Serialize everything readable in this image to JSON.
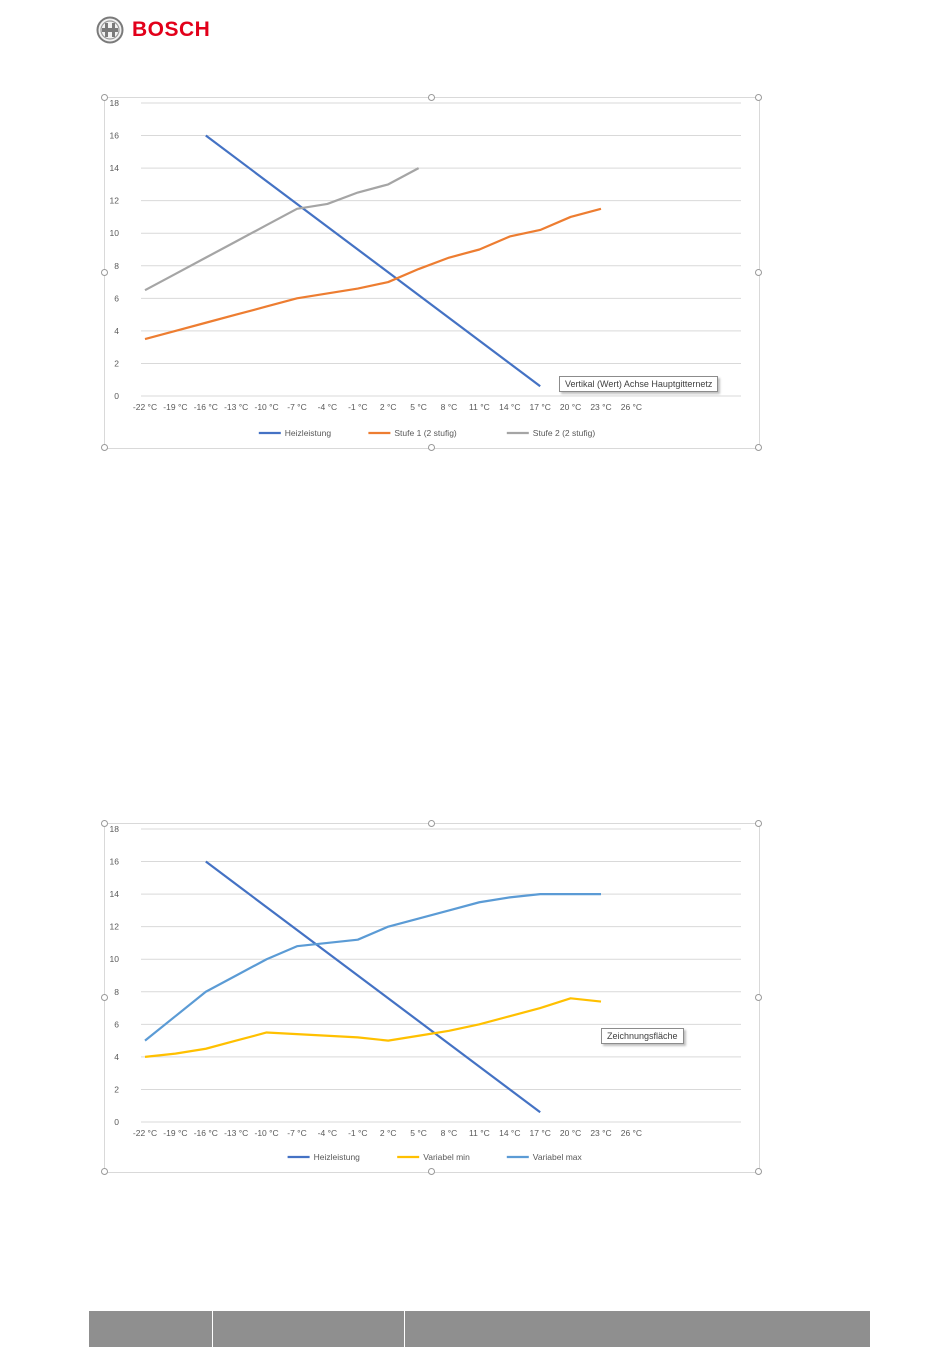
{
  "header": {
    "brand": "BOSCH",
    "brand_color": "#e2001a",
    "logo_icon": "bosch-armature-icon"
  },
  "chart_data": [
    {
      "type": "line",
      "categories": [
        "-22 °C",
        "-19 °C",
        "-16 °C",
        "-13 °C",
        "-10 °C",
        "-7 °C",
        "-4 °C",
        "-1 °C",
        "2 °C",
        "5 °C",
        "8 °C",
        "11 °C",
        "14 °C",
        "17 °C",
        "20 °C",
        "23 °C",
        "26 °C"
      ],
      "ylim": [
        0,
        18
      ],
      "yticks": [
        "0",
        "2",
        "4",
        "6",
        "8",
        "10",
        "12",
        "14",
        "16",
        "18"
      ],
      "grid": true,
      "legend": "bottom",
      "series": [
        {
          "name": "Heizleistung",
          "color": "#4472c4",
          "values": [
            null,
            null,
            16,
            null,
            null,
            null,
            null,
            null,
            null,
            null,
            null,
            null,
            null,
            0.6,
            null,
            null,
            null
          ]
        },
        {
          "name": "Stufe 1 (2 stufig)",
          "color": "#ed7d31",
          "values": [
            3.5,
            4.0,
            4.5,
            5.0,
            5.5,
            6.0,
            6.3,
            6.6,
            7.0,
            7.8,
            8.5,
            9.0,
            9.8,
            10.2,
            11.0,
            11.5,
            null
          ]
        },
        {
          "name": "Stufe 2 (2 stufig)",
          "color": "#a5a5a5",
          "values": [
            6.5,
            7.5,
            8.5,
            9.5,
            10.5,
            11.5,
            11.8,
            12.5,
            13.0,
            14.0,
            null,
            null,
            null,
            null,
            null,
            null,
            null
          ]
        }
      ],
      "tooltip": "Vertikal (Wert) Achse Hauptgitternetz"
    },
    {
      "type": "line",
      "categories": [
        "-22 °C",
        "-19 °C",
        "-16 °C",
        "-13 °C",
        "-10 °C",
        "-7 °C",
        "-4 °C",
        "-1 °C",
        "2 °C",
        "5 °C",
        "8 °C",
        "11 °C",
        "14 °C",
        "17 °C",
        "20 °C",
        "23 °C",
        "26 °C"
      ],
      "ylim": [
        0,
        18
      ],
      "yticks": [
        "0",
        "2",
        "4",
        "6",
        "8",
        "10",
        "12",
        "14",
        "16",
        "18"
      ],
      "grid": true,
      "legend": "bottom",
      "series": [
        {
          "name": "Heizleistung",
          "color": "#4472c4",
          "values": [
            null,
            null,
            16,
            null,
            null,
            null,
            null,
            null,
            null,
            null,
            null,
            null,
            null,
            0.6,
            null,
            null,
            null
          ]
        },
        {
          "name": "Variabel min",
          "color": "#ffc000",
          "values": [
            4.0,
            4.2,
            4.5,
            5.0,
            5.5,
            5.4,
            5.3,
            5.2,
            5.0,
            5.3,
            5.6,
            6.0,
            6.5,
            7.0,
            7.6,
            7.4,
            null
          ]
        },
        {
          "name": "Variabel max",
          "color": "#5b9bd5",
          "values": [
            5.0,
            6.5,
            8.0,
            9.0,
            10.0,
            10.8,
            11.0,
            11.2,
            12.0,
            12.5,
            13.0,
            13.5,
            13.8,
            14.0,
            14.0,
            14.0,
            null
          ]
        }
      ],
      "tooltip": "Zeichnungsfläche"
    }
  ]
}
